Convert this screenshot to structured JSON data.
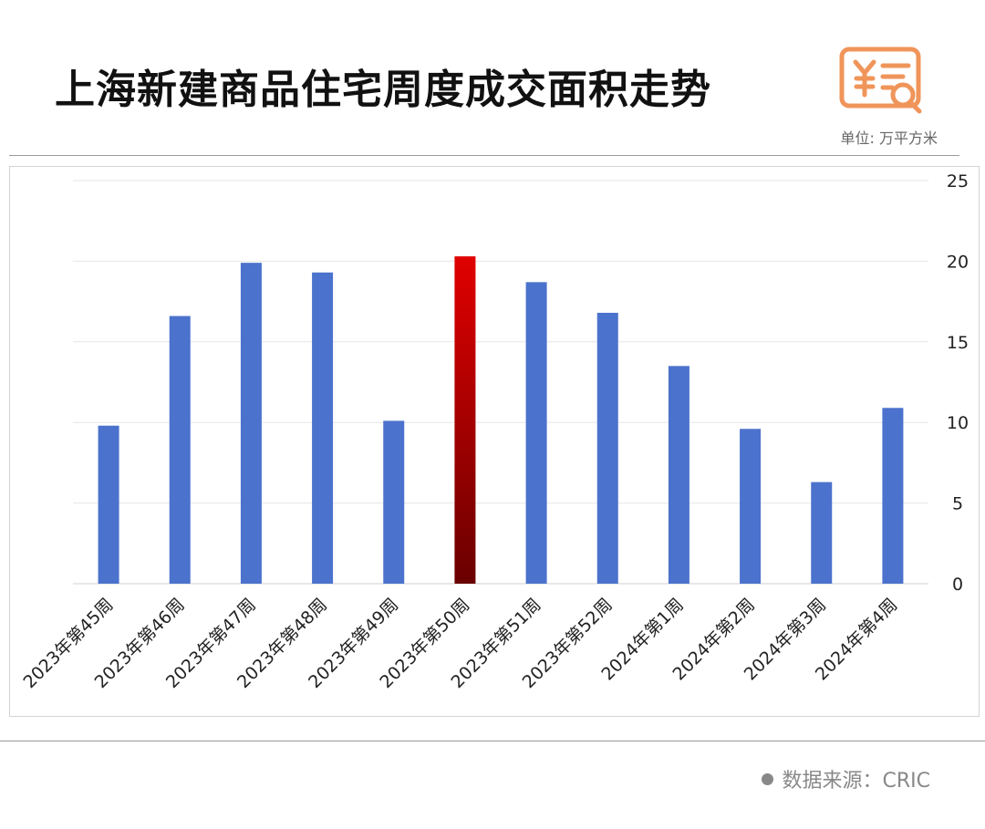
{
  "header": {
    "title": "上海新建商品住宅周度成交面积走势",
    "unit": "单位: 万平方米",
    "logo_icon": "receipt-yuan-search-icon"
  },
  "footer": {
    "source": "数据来源：CRIC"
  },
  "colors": {
    "bar": "#4B72CC",
    "highlight_top": "#E00000",
    "highlight_bottom": "#6A0000",
    "logo": "#F0955A"
  },
  "chart_data": {
    "type": "bar",
    "title": "上海新建商品住宅周度成交面积走势",
    "xlabel": "",
    "ylabel": "",
    "unit": "单位: 万平方米",
    "y_axis_position": "right",
    "ylim": [
      0,
      25
    ],
    "yticks": [
      0,
      5,
      10,
      15,
      20,
      25
    ],
    "grid": true,
    "categories": [
      "2023年第45周",
      "2023年第46周",
      "2023年第47周",
      "2023年第48周",
      "2023年第49周",
      "2023年第50周",
      "2023年第51周",
      "2023年第52周",
      "2024年第1周",
      "2024年第2周",
      "2024年第3周",
      "2024年第4周"
    ],
    "values": [
      9.8,
      16.6,
      19.9,
      19.3,
      10.1,
      20.3,
      18.7,
      16.8,
      13.5,
      9.6,
      6.3,
      10.9
    ],
    "highlight_index": 5
  }
}
